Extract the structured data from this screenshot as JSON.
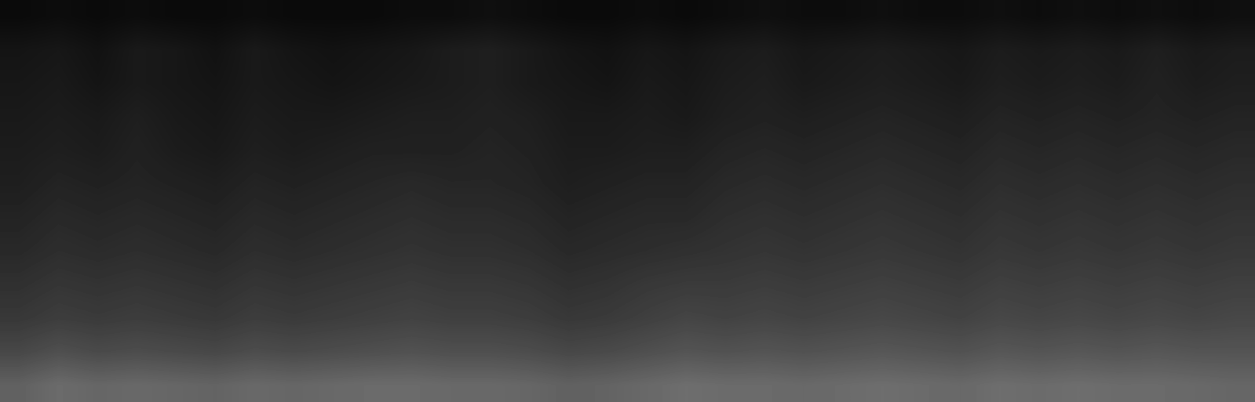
{
  "chart_data": {
    "type": "heatmap",
    "color": "gray",
    "tick_labels": false,
    "color_range": [
      0,
      1
    ],
    "cells": [
      [
        0.04,
        0.05,
        0.04,
        0.05,
        0.04,
        0.04,
        0.05,
        0.04,
        0.04,
        0.04,
        0.05,
        0.05,
        0.06,
        0.05,
        0.04,
        0.04,
        0.05,
        0.04,
        0.05,
        0.06,
        0.05,
        0.05,
        0.06,
        0.05,
        0.05,
        0.06,
        0.05,
        0.06,
        0.05,
        0.06,
        0.05,
        0.06
      ],
      [
        0.08,
        0.09,
        0.07,
        0.1,
        0.09,
        0.07,
        0.1,
        0.08,
        0.07,
        0.08,
        0.09,
        0.11,
        0.12,
        0.1,
        0.08,
        0.07,
        0.09,
        0.08,
        0.1,
        0.11,
        0.09,
        0.1,
        0.11,
        0.1,
        0.09,
        0.11,
        0.1,
        0.11,
        0.1,
        0.12,
        0.1,
        0.11
      ],
      [
        0.09,
        0.1,
        0.08,
        0.1,
        0.09,
        0.08,
        0.1,
        0.09,
        0.08,
        0.09,
        0.1,
        0.11,
        0.12,
        0.1,
        0.09,
        0.08,
        0.1,
        0.09,
        0.11,
        0.12,
        0.1,
        0.11,
        0.12,
        0.11,
        0.1,
        0.12,
        0.11,
        0.12,
        0.11,
        0.13,
        0.11,
        0.12
      ],
      [
        0.1,
        0.11,
        0.1,
        0.12,
        0.1,
        0.09,
        0.11,
        0.1,
        0.1,
        0.11,
        0.12,
        0.12,
        0.13,
        0.12,
        0.1,
        0.1,
        0.11,
        0.1,
        0.12,
        0.13,
        0.12,
        0.13,
        0.14,
        0.13,
        0.12,
        0.14,
        0.13,
        0.14,
        0.13,
        0.14,
        0.13,
        0.14
      ],
      [
        0.11,
        0.12,
        0.11,
        0.13,
        0.11,
        0.1,
        0.12,
        0.11,
        0.12,
        0.13,
        0.13,
        0.13,
        0.14,
        0.13,
        0.11,
        0.11,
        0.12,
        0.12,
        0.14,
        0.15,
        0.14,
        0.15,
        0.16,
        0.15,
        0.14,
        0.16,
        0.15,
        0.16,
        0.15,
        0.16,
        0.15,
        0.16
      ],
      [
        0.12,
        0.14,
        0.13,
        0.14,
        0.13,
        0.12,
        0.14,
        0.13,
        0.14,
        0.15,
        0.16,
        0.15,
        0.15,
        0.14,
        0.12,
        0.13,
        0.14,
        0.14,
        0.16,
        0.17,
        0.16,
        0.17,
        0.18,
        0.17,
        0.16,
        0.18,
        0.17,
        0.18,
        0.17,
        0.18,
        0.17,
        0.18
      ],
      [
        0.14,
        0.16,
        0.15,
        0.16,
        0.15,
        0.14,
        0.16,
        0.15,
        0.16,
        0.17,
        0.18,
        0.17,
        0.17,
        0.16,
        0.14,
        0.15,
        0.16,
        0.16,
        0.18,
        0.19,
        0.18,
        0.19,
        0.2,
        0.19,
        0.18,
        0.2,
        0.19,
        0.2,
        0.19,
        0.2,
        0.19,
        0.2
      ],
      [
        0.16,
        0.18,
        0.17,
        0.18,
        0.17,
        0.16,
        0.18,
        0.17,
        0.18,
        0.19,
        0.2,
        0.19,
        0.19,
        0.18,
        0.16,
        0.17,
        0.18,
        0.19,
        0.2,
        0.21,
        0.2,
        0.21,
        0.22,
        0.21,
        0.2,
        0.22,
        0.21,
        0.22,
        0.21,
        0.22,
        0.21,
        0.22
      ],
      [
        0.19,
        0.21,
        0.2,
        0.21,
        0.2,
        0.19,
        0.21,
        0.2,
        0.21,
        0.22,
        0.23,
        0.22,
        0.22,
        0.21,
        0.19,
        0.2,
        0.22,
        0.23,
        0.23,
        0.24,
        0.23,
        0.24,
        0.25,
        0.24,
        0.23,
        0.25,
        0.24,
        0.25,
        0.24,
        0.25,
        0.24,
        0.25
      ],
      [
        0.22,
        0.24,
        0.23,
        0.24,
        0.23,
        0.22,
        0.24,
        0.23,
        0.24,
        0.25,
        0.26,
        0.25,
        0.25,
        0.24,
        0.22,
        0.23,
        0.25,
        0.27,
        0.26,
        0.27,
        0.26,
        0.27,
        0.28,
        0.27,
        0.26,
        0.28,
        0.27,
        0.28,
        0.27,
        0.28,
        0.27,
        0.28
      ],
      [
        0.28,
        0.31,
        0.29,
        0.3,
        0.29,
        0.28,
        0.3,
        0.29,
        0.3,
        0.31,
        0.32,
        0.31,
        0.31,
        0.3,
        0.28,
        0.29,
        0.31,
        0.33,
        0.32,
        0.33,
        0.32,
        0.33,
        0.34,
        0.33,
        0.32,
        0.34,
        0.33,
        0.34,
        0.33,
        0.34,
        0.33,
        0.33
      ],
      [
        0.38,
        0.42,
        0.4,
        0.41,
        0.4,
        0.39,
        0.41,
        0.4,
        0.41,
        0.42,
        0.42,
        0.41,
        0.41,
        0.4,
        0.38,
        0.39,
        0.41,
        0.43,
        0.42,
        0.42,
        0.41,
        0.42,
        0.43,
        0.42,
        0.41,
        0.43,
        0.42,
        0.43,
        0.42,
        0.42,
        0.41,
        0.4
      ]
    ]
  }
}
